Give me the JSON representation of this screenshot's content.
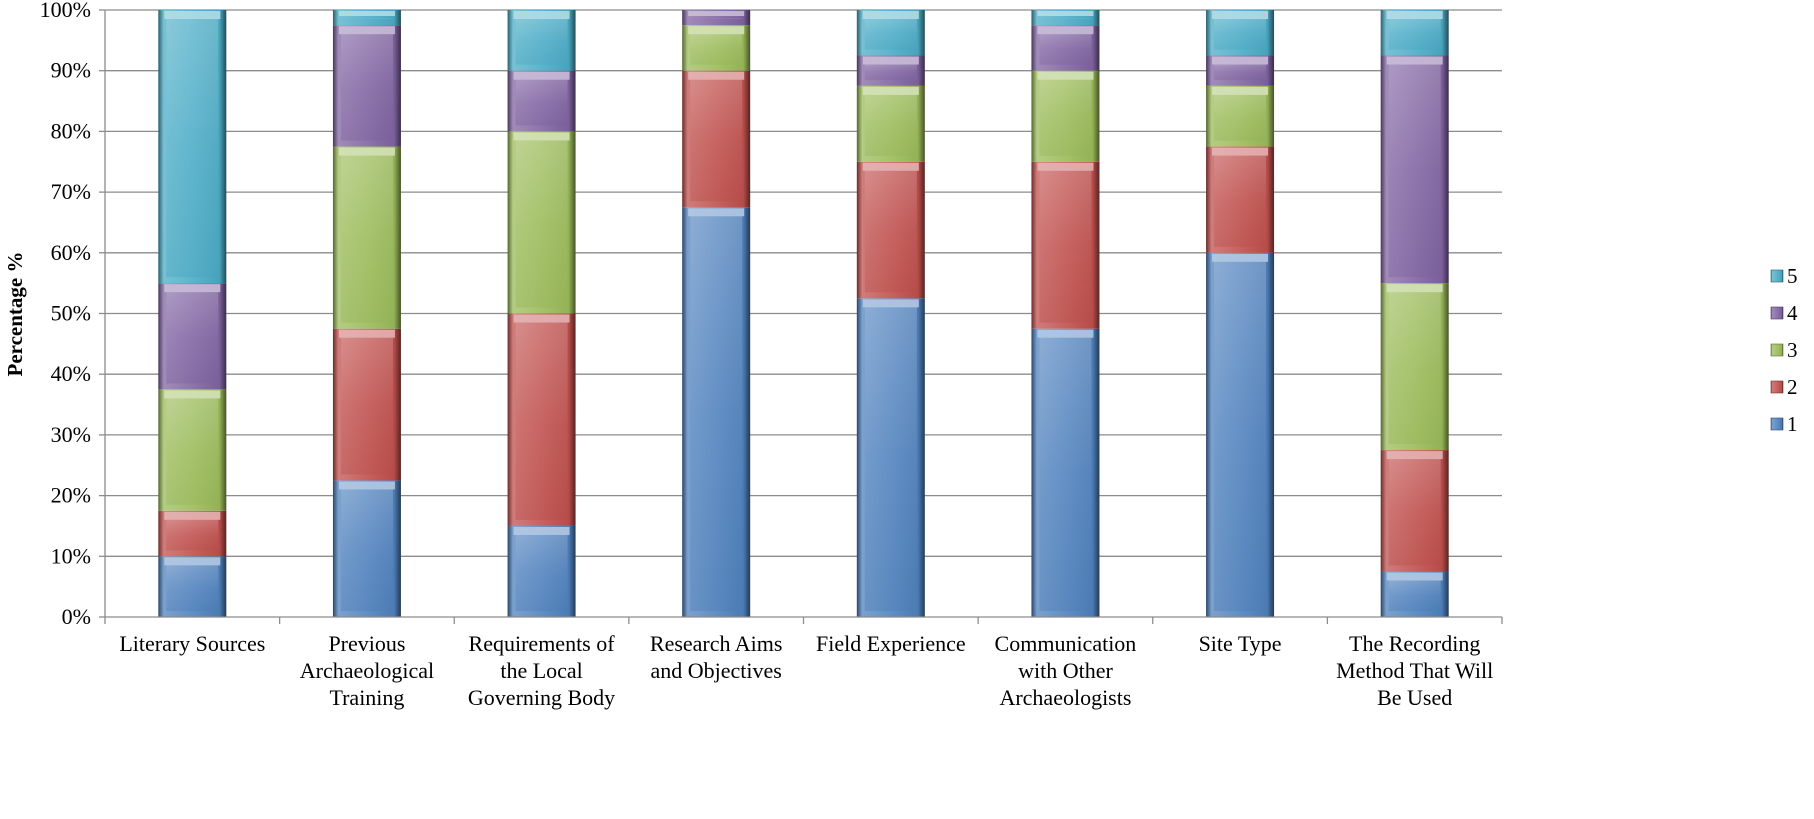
{
  "chart_data": {
    "type": "bar",
    "stacked": true,
    "percent": true,
    "ylabel": "Percentage %",
    "xlabel": "",
    "ylim": [
      0,
      100
    ],
    "ytick_labels": [
      "0%",
      "10%",
      "20%",
      "30%",
      "40%",
      "50%",
      "60%",
      "70%",
      "80%",
      "90%",
      "100%"
    ],
    "grid": "horizontal",
    "legend": "right",
    "categories": [
      "Literary Sources",
      "Previous Archaeological Training",
      "Requirements of the Local Governing Body",
      "Research Aims and Objectives",
      "Field Experience",
      "Communication with Other Archaeologists",
      "Site Type",
      "The Recording Method That Will Be Used"
    ],
    "series": [
      {
        "name": "1",
        "color": "#4f81bd",
        "values": [
          10,
          22.5,
          15,
          67.5,
          52.5,
          47.5,
          60,
          7.5
        ]
      },
      {
        "name": "2",
        "color": "#c0504d",
        "values": [
          7.5,
          25,
          35,
          22.5,
          22.5,
          27.5,
          17.5,
          20
        ]
      },
      {
        "name": "3",
        "color": "#9bbb59",
        "values": [
          20,
          30,
          30,
          7.5,
          12.5,
          15,
          10,
          27.5
        ]
      },
      {
        "name": "4",
        "color": "#8064a2",
        "values": [
          17.5,
          20,
          10,
          2.5,
          5,
          7.5,
          5,
          37.5
        ]
      },
      {
        "name": "5",
        "color": "#4bacc6",
        "values": [
          45,
          2.5,
          10,
          0,
          7.5,
          2.5,
          7.5,
          7.5
        ]
      }
    ]
  }
}
